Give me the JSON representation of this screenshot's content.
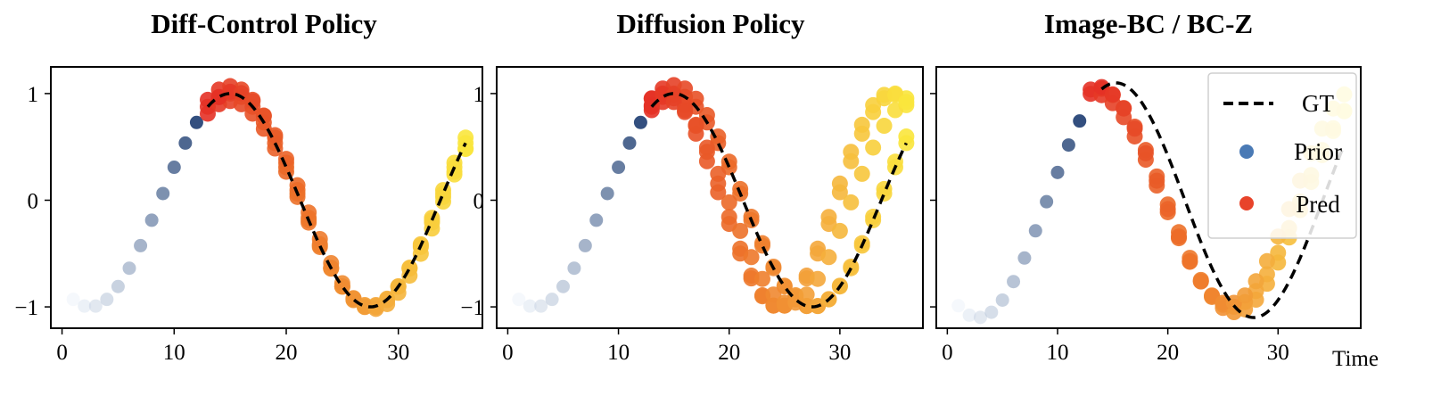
{
  "figure": {
    "x_unit_label": "Time"
  },
  "legend": {
    "gt_label": "GT",
    "prior_label": "Prior",
    "pred_label": "Pred",
    "gt_color": "#000000",
    "prior_color": "#4a7ab5",
    "pred_color": "#e8432a"
  },
  "chart_data": [
    {
      "type": "scatter",
      "title": "Diff-Control Policy",
      "xlim": [
        -1,
        37.5
      ],
      "ylim": [
        -1.2,
        1.25
      ],
      "xticks": [
        0,
        10,
        20,
        30
      ],
      "yticks": [
        1,
        0,
        -1
      ],
      "ytick_labels": [
        "1",
        "0",
        "−1"
      ],
      "gt": {
        "x_start": 13,
        "x_end": 36,
        "amplitude": 1.0,
        "period": 25,
        "phase": 15
      },
      "prior": {
        "x_start": 1,
        "x_end": 12,
        "amplitude": 1.0,
        "period": 25,
        "phase": 15
      },
      "pred_trajectories": [
        {
          "start": 13,
          "end": 36,
          "amplitude": 1.0,
          "period": 25,
          "phase": 15,
          "offset": 0.0
        },
        {
          "start": 13,
          "end": 36,
          "amplitude": 1.04,
          "period": 25,
          "phase": 15,
          "offset": 0.03
        },
        {
          "start": 13,
          "end": 36,
          "amplitude": 0.96,
          "period": 25,
          "phase": 15,
          "offset": -0.03
        },
        {
          "start": 14,
          "end": 36,
          "amplitude": 1.02,
          "period": 25,
          "phase": 15.3,
          "offset": 0.0
        }
      ],
      "legend": false
    },
    {
      "type": "scatter",
      "title": "Diffusion Policy",
      "xlim": [
        -1,
        37.5
      ],
      "ylim": [
        -1.2,
        1.25
      ],
      "xticks": [
        0,
        10,
        20,
        30
      ],
      "yticks": [
        1,
        0,
        -1
      ],
      "ytick_labels": [
        "1",
        "0",
        "−1"
      ],
      "gt": {
        "x_start": 13,
        "x_end": 36,
        "amplitude": 1.0,
        "period": 25,
        "phase": 15
      },
      "prior": {
        "x_start": 1,
        "x_end": 12,
        "amplitude": 1.0,
        "period": 25,
        "phase": 15
      },
      "pred_trajectories": [
        {
          "start": 13,
          "end": 36,
          "amplitude": 1.0,
          "period": 25,
          "phase": 15,
          "offset": 0.0
        },
        {
          "start": 13,
          "end": 36,
          "amplitude": 1.04,
          "period": 25,
          "phase": 15,
          "offset": 0.04
        },
        {
          "start": 13,
          "end": 36,
          "amplitude": 1.0,
          "period": 21,
          "phase": 14,
          "offset": 0.0
        },
        {
          "start": 13,
          "end": 36,
          "amplitude": 1.0,
          "period": 20,
          "phase": 14.5,
          "offset": 0.0
        },
        {
          "start": 13,
          "end": 36,
          "amplitude": 0.95,
          "period": 22,
          "phase": 14.5,
          "offset": -0.02
        }
      ],
      "legend": false
    },
    {
      "type": "scatter",
      "title": "Image-BC / BC-Z",
      "xlim": [
        -1,
        37.5
      ],
      "ylim": [
        -1.2,
        1.25
      ],
      "xticks": [
        0,
        10,
        20,
        30
      ],
      "yticks": [
        1,
        0,
        -1
      ],
      "ytick_labels": [
        "",
        "",
        ""
      ],
      "gt": {
        "x_start": 14,
        "x_end": 36,
        "amplitude": 1.1,
        "period": 25,
        "phase": 15.3
      },
      "prior": {
        "x_start": 1,
        "x_end": 12,
        "amplitude": 1.1,
        "period": 25,
        "phase": 15.3
      },
      "pred_trajectories": [
        {
          "start": 13,
          "end": 36,
          "amplitude": 1.05,
          "period": 25,
          "phase": 13.6,
          "offset": 0.0
        },
        {
          "start": 13,
          "end": 36,
          "amplitude": 1.0,
          "period": 25,
          "phase": 13.3,
          "offset": 0.0
        },
        {
          "start": 14,
          "end": 36,
          "amplitude": 1.02,
          "period": 24,
          "phase": 13.5,
          "offset": 0.05
        }
      ],
      "legend": true,
      "legend_position": "top-right"
    }
  ]
}
